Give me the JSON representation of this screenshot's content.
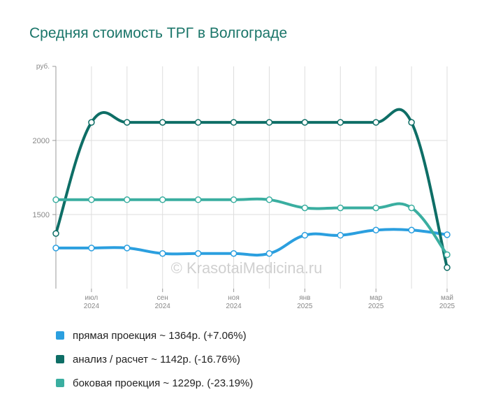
{
  "title": "Средняя стоимость ТРГ в Волгограде",
  "watermark": "© KrasotaiMedicina.ru",
  "chart_data": {
    "type": "line",
    "ylabel": "руб.",
    "ylim": [
      1000,
      2500
    ],
    "yticks": [
      1500,
      2000
    ],
    "xlim": [
      0,
      11
    ],
    "grid": true,
    "xticks": [
      {
        "pos": 1,
        "month": "июл",
        "year": "2024"
      },
      {
        "pos": 3,
        "month": "сен",
        "year": "2024"
      },
      {
        "pos": 5,
        "month": "ноя",
        "year": "2024"
      },
      {
        "pos": 7,
        "month": "янв",
        "year": "2025"
      },
      {
        "pos": 9,
        "month": "мар",
        "year": "2025"
      },
      {
        "pos": 11,
        "month": "май",
        "year": "2025"
      }
    ],
    "x": [
      0,
      1,
      2,
      3,
      4,
      5,
      6,
      7,
      8,
      9,
      10,
      11
    ],
    "series": [
      {
        "name": "прямая проекция ~ 1364р. (+7.06%)",
        "color": "#2b9fdf",
        "values": [
          1274,
          1274,
          1274,
          1237,
          1237,
          1237,
          1237,
          1360,
          1360,
          1395,
          1395,
          1364
        ]
      },
      {
        "name": "анализ / расчет ~ 1142р. (-16.76%)",
        "color": "#0e6e66",
        "values": [
          1372,
          2122,
          2122,
          2122,
          2122,
          2122,
          2122,
          2122,
          2122,
          2122,
          2122,
          1142
        ]
      },
      {
        "name": "боковая проекция ~ 1229р. (-23.19%)",
        "color": "#3aaea0",
        "values": [
          1600,
          1600,
          1600,
          1600,
          1600,
          1600,
          1600,
          1545,
          1545,
          1545,
          1545,
          1229
        ]
      }
    ]
  }
}
